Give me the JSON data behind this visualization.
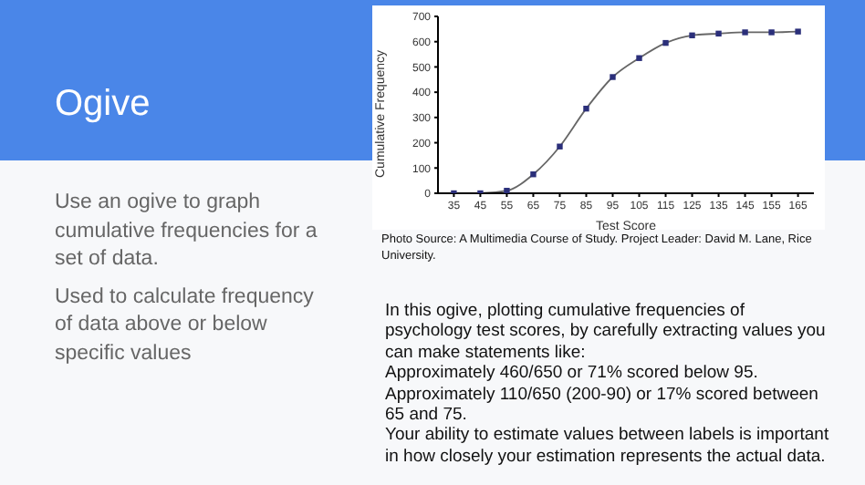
{
  "chart_data": {
    "type": "line",
    "title": "Ogive",
    "xlabel": "Test Score",
    "ylabel": "Cumulative Frequency",
    "x": [
      35,
      45,
      55,
      65,
      75,
      85,
      95,
      105,
      115,
      125,
      135,
      145,
      155,
      165
    ],
    "series": [
      {
        "color": "#2b2f7a",
        "values": [
          0,
          0,
          10,
          75,
          185,
          335,
          460,
          535,
          595,
          625,
          632,
          637,
          637,
          640
        ]
      }
    ],
    "xlim": [
      29,
      171
    ],
    "xticks": [
      35,
      45,
      55,
      65,
      75,
      85,
      95,
      105,
      115,
      125,
      135,
      145,
      155,
      165
    ],
    "ylim": [
      0,
      700
    ],
    "yticks": [
      0,
      100,
      200,
      300,
      400,
      500,
      600,
      700
    ],
    "grid": false,
    "legend": false,
    "marker": "square",
    "line_style": "solid",
    "annotations": [
      "Use an ogive to graph cumulative frequencies for a set of data.",
      "Used to calculate frequency of data above or below specific values",
      "Photo Source: A Multimedia Course of Study. Project Leader: David M. Lane, Rice University.",
      "In this ogive, plotting cumulative frequencies of psychology test scores, by carefully extracting values you can make statements like:",
      "Approximately 460/650 or 71% scored below 95.",
      "Approximately 110/650 (200-90) or 17% scored between 65 and 75.",
      "Your ability to estimate values between labels is important in how closely your estimation represents the actual data."
    ]
  }
}
